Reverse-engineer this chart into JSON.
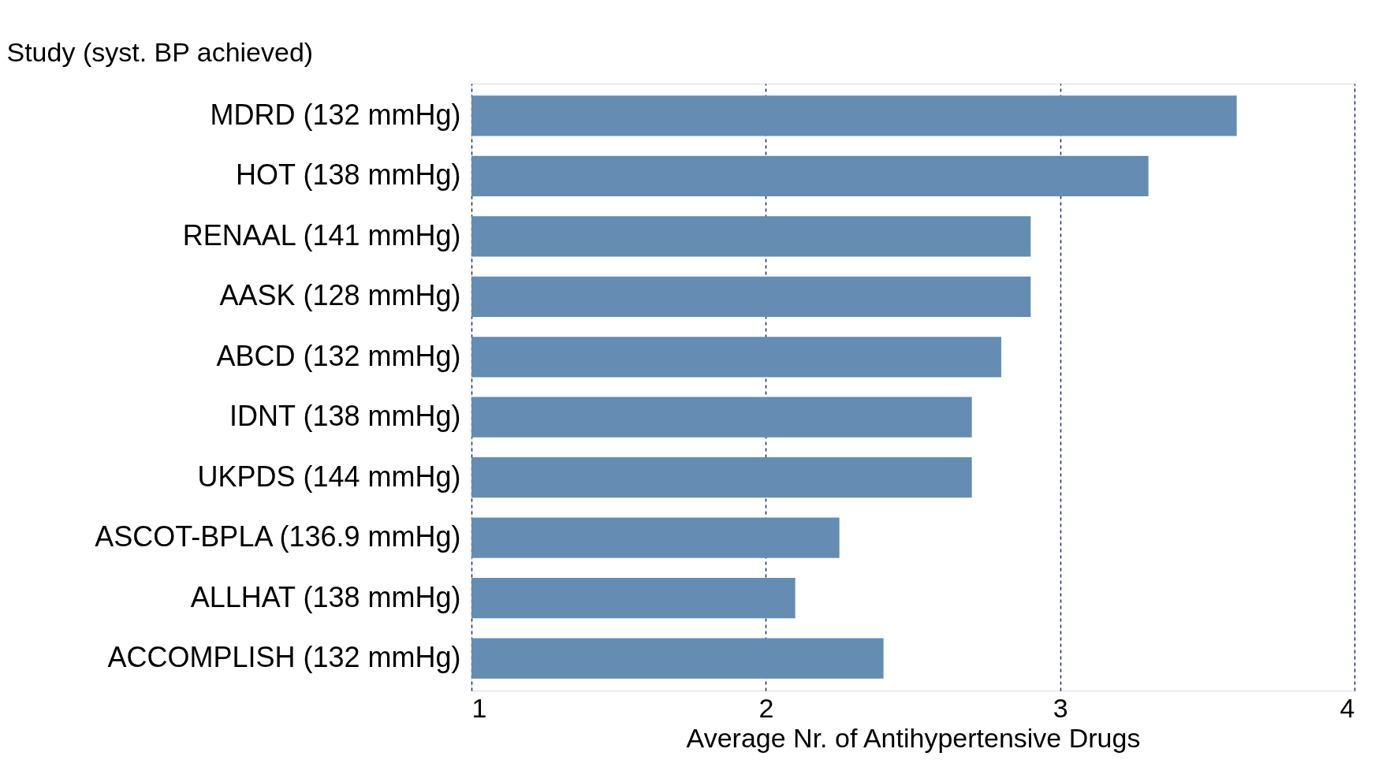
{
  "chart_data": {
    "type": "bar",
    "orientation": "horizontal",
    "ylabel": "Study (syst. BP achieved)",
    "xlabel": "Average Nr. of Antihypertensive Drugs",
    "categories": [
      "MDRD (132 mmHg)",
      "HOT (138 mmHg)",
      "RENAAL (141 mmHg)",
      "AASK (128 mmHg)",
      "ABCD (132 mmHg)",
      "IDNT (138 mmHg)",
      "UKPDS (144 mmHg)",
      "ASCOT-BPLA (136.9 mmHg)",
      "ALLHAT (138 mmHg)",
      "ACCOMPLISH (132 mmHg)"
    ],
    "values": [
      3.6,
      3.3,
      2.9,
      2.9,
      2.8,
      2.7,
      2.7,
      2.25,
      2.1,
      2.4
    ],
    "color": "#658cb3",
    "xlim": [
      1,
      4
    ],
    "xticks": [
      1,
      2,
      3,
      4
    ],
    "grid": "x"
  }
}
